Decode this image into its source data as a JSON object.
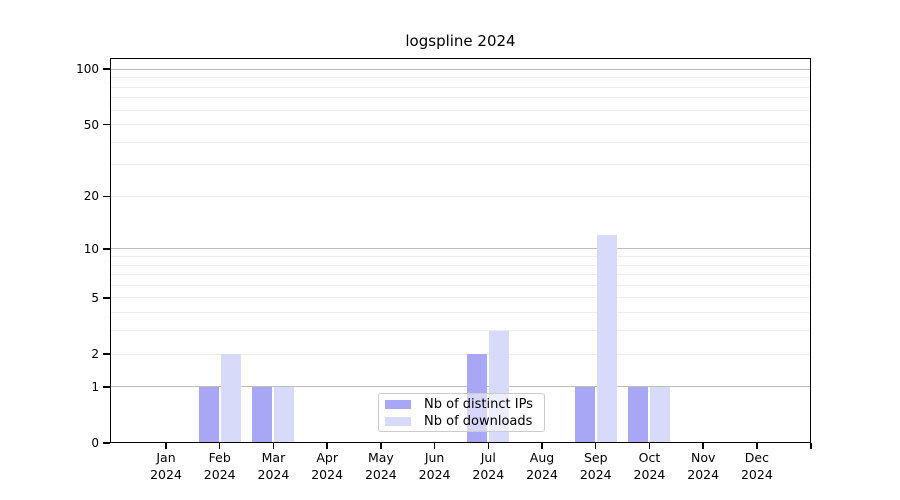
{
  "title": "logspline 2024",
  "colors": {
    "ips": "#a7a7f6",
    "downloads": "#d8daf9",
    "grid_major": "#bdbdbd",
    "grid_minor": "#ededed",
    "axis": "#000000",
    "legend_border": "#cbcbcb"
  },
  "legend": {
    "items": [
      {
        "label": "Nb of distinct IPs",
        "color_key": "ips"
      },
      {
        "label": "Nb of downloads",
        "color_key": "downloads"
      }
    ]
  },
  "chart_data": {
    "type": "bar",
    "title": "logspline 2024",
    "scale": "log1p",
    "categories": [
      "Jan 2024",
      "Feb 2024",
      "Mar 2024",
      "Apr 2024",
      "May 2024",
      "Jun 2024",
      "Jul 2024",
      "Aug 2024",
      "Sep 2024",
      "Oct 2024",
      "Nov 2024",
      "Dec 2024"
    ],
    "x_axis": {
      "months": [
        "Jan",
        "Feb",
        "Mar",
        "Apr",
        "May",
        "Jun",
        "Jul",
        "Aug",
        "Sep",
        "Oct",
        "Nov",
        "Dec"
      ],
      "year": "2024",
      "extra_unlabeled_tick_at_right_edge": true
    },
    "series": [
      {
        "name": "Nb of distinct IPs",
        "values": [
          0,
          1,
          1,
          0,
          0,
          0,
          2,
          0,
          1,
          1,
          0,
          0
        ]
      },
      {
        "name": "Nb of downloads",
        "values": [
          0,
          2,
          1,
          0,
          0,
          0,
          3,
          0,
          12,
          1,
          0,
          0
        ]
      }
    ],
    "y_axis": {
      "labeled_ticks": [
        0,
        1,
        2,
        5,
        10,
        20,
        50,
        100
      ],
      "major_gridlines": [
        1,
        10,
        100
      ],
      "minor_gridlines": [
        2,
        3,
        4,
        5,
        6,
        7,
        8,
        9,
        20,
        30,
        40,
        50,
        60,
        70,
        80,
        90
      ],
      "max": 115
    },
    "xlabel": "",
    "ylabel": "",
    "legend_position": "lower-center",
    "grid": true
  }
}
